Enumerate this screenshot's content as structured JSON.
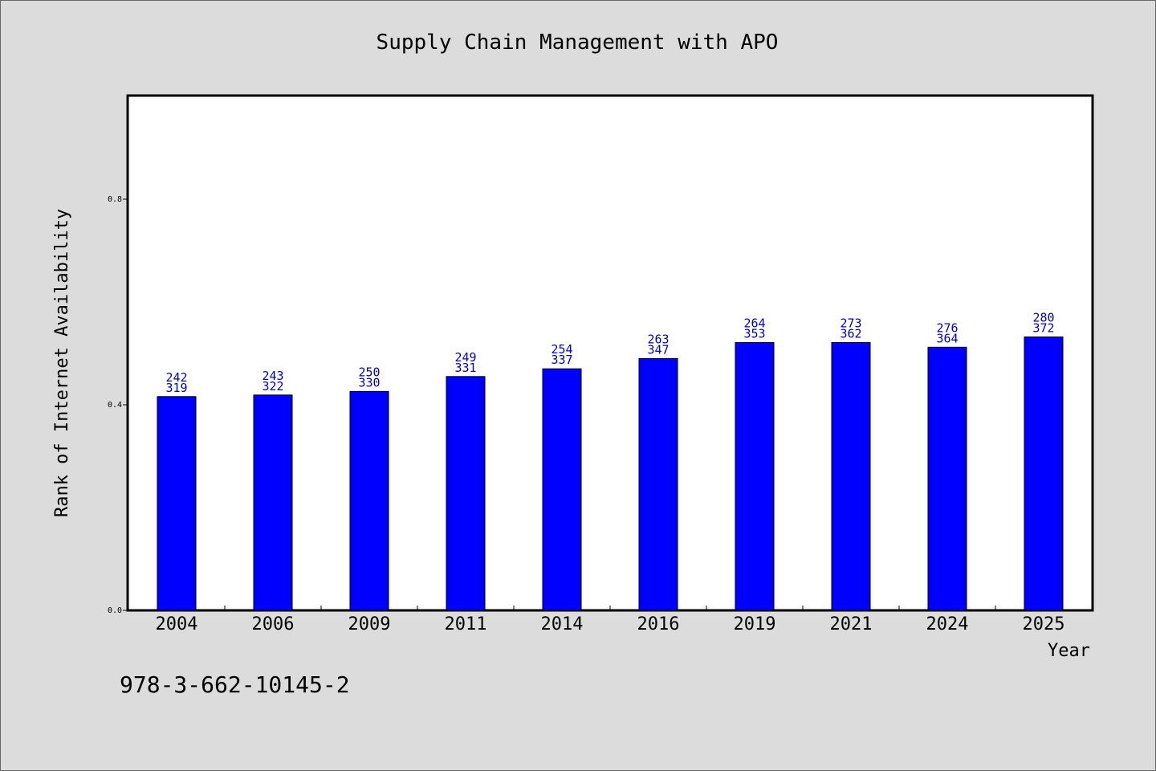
{
  "chart_data": {
    "type": "bar",
    "title": "Supply Chain Management with APO",
    "xlabel": "Year",
    "ylabel": "Rank of Internet Availability",
    "categories": [
      "2004",
      "2006",
      "2009",
      "2011",
      "2014",
      "2016",
      "2019",
      "2021",
      "2024",
      "2025"
    ],
    "values": [
      0.416,
      0.419,
      0.426,
      0.455,
      0.47,
      0.49,
      0.521,
      0.521,
      0.512,
      0.532
    ],
    "labels_top": [
      "242",
      "243",
      "250",
      "249",
      "254",
      "263",
      "264",
      "273",
      "276",
      "280"
    ],
    "labels_bottom": [
      "319",
      "322",
      "330",
      "331",
      "337",
      "347",
      "353",
      "362",
      "364",
      "372"
    ],
    "ylim": [
      0,
      1.0
    ],
    "yticks": [
      0.0,
      0.4,
      0.8
    ],
    "ytick_labels": [
      "0.0",
      "0.4",
      "0.8"
    ],
    "grid": false,
    "bar_color": "#0000ff",
    "label_color": "#0000cc"
  },
  "annotation": "978-3-662-10145-2"
}
